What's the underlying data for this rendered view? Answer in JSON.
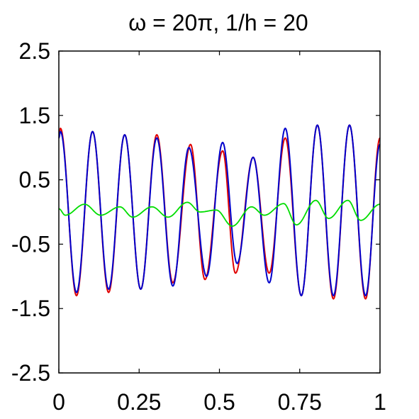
{
  "chart_data": {
    "type": "line",
    "title": "ω = 20π, 1/h = 20",
    "xlabel": "",
    "ylabel": "",
    "xlim": [
      0,
      1
    ],
    "ylim": [
      -2.5,
      2.5
    ],
    "xticks": [
      0,
      0.25,
      0.5,
      0.75,
      1
    ],
    "xtick_labels": [
      "0",
      "0.25",
      "0.5",
      "0.75",
      "1"
    ],
    "yticks": [
      -2.5,
      -1.5,
      -0.5,
      0.5,
      1.5,
      2.5
    ],
    "ytick_labels": [
      "-2.5",
      "-1.5",
      "-0.5",
      "0.5",
      "1.5",
      "2.5"
    ],
    "grid": false,
    "legend": false,
    "colors": {
      "red": "#e00000",
      "blue": "#0000cc",
      "green": "#00dd00"
    },
    "series": [
      {
        "color": "#e00000",
        "x": [
          0,
          0.005,
          0.055,
          0.105,
          0.155,
          0.205,
          0.255,
          0.305,
          0.355,
          0.41,
          0.455,
          0.51,
          0.55,
          0.605,
          0.655,
          0.705,
          0.755,
          0.805,
          0.855,
          0.905,
          0.955,
          1
        ],
        "y": [
          1.15,
          1.3,
          -1.3,
          1.25,
          -1.25,
          1.2,
          -1.2,
          1.2,
          -1.1,
          1.05,
          -1.05,
          0.95,
          -0.95,
          0.85,
          -0.95,
          1.15,
          -1.3,
          1.35,
          -1.35,
          1.35,
          -1.35,
          1.15
        ]
      },
      {
        "color": "#0000cc",
        "x": [
          0,
          0.005,
          0.055,
          0.105,
          0.155,
          0.205,
          0.255,
          0.305,
          0.355,
          0.405,
          0.46,
          0.51,
          0.555,
          0.605,
          0.655,
          0.705,
          0.755,
          0.805,
          0.855,
          0.905,
          0.955,
          1
        ],
        "y": [
          1.15,
          1.25,
          -1.25,
          1.25,
          -1.2,
          1.2,
          -1.2,
          1.15,
          -1.15,
          1.0,
          -1.0,
          1.08,
          -0.8,
          0.85,
          -1.1,
          1.3,
          -1.3,
          1.35,
          -1.3,
          1.35,
          -1.3,
          1.05
        ]
      },
      {
        "color": "#00dd00",
        "x": [
          0,
          0.02,
          0.08,
          0.13,
          0.19,
          0.23,
          0.29,
          0.34,
          0.4,
          0.44,
          0.49,
          0.54,
          0.6,
          0.64,
          0.7,
          0.74,
          0.8,
          0.84,
          0.9,
          0.94,
          1
        ],
        "y": [
          0.05,
          -0.05,
          0.12,
          -0.05,
          0.08,
          -0.08,
          0.08,
          -0.08,
          0.15,
          0.0,
          0.03,
          -0.22,
          0.08,
          -0.05,
          0.13,
          -0.2,
          0.18,
          -0.1,
          0.18,
          -0.13,
          0.12
        ]
      }
    ]
  }
}
